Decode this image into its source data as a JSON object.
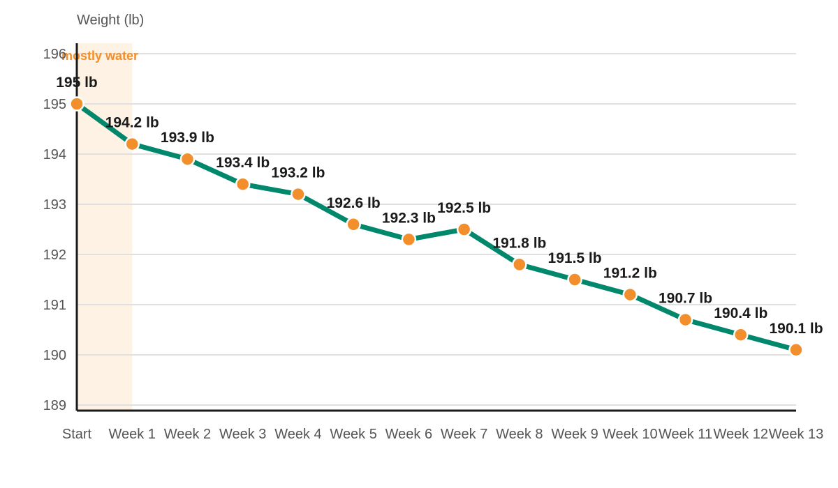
{
  "chart_data": {
    "type": "line",
    "ylabel": "Weight (lb)",
    "xlabel": "",
    "categories": [
      "Start",
      "Week 1",
      "Week 2",
      "Week 3",
      "Week 4",
      "Week 5",
      "Week 6",
      "Week 7",
      "Week 8",
      "Week 9",
      "Week 10",
      "Week 11",
      "Week 12",
      "Week 13"
    ],
    "series": [
      {
        "values": [
          195,
          194.2,
          193.9,
          193.4,
          193.2,
          192.6,
          192.3,
          192.5,
          191.8,
          191.5,
          191.2,
          190.7,
          190.4,
          190.1
        ],
        "labels": [
          "195 lb",
          "194.2 lb",
          "193.9 lb",
          "193.4 lb",
          "193.2 lb",
          "192.6 lb",
          "192.3 lb",
          "192.5 lb",
          "191.8 lb",
          "191.5 lb",
          "191.2 lb",
          "190.7 lb",
          "190.4 lb",
          "190.1 lb"
        ]
      }
    ],
    "ylim": [
      189,
      196
    ],
    "yticks": [
      "189",
      "190",
      "191",
      "192",
      "193",
      "194",
      "195",
      "196"
    ],
    "grid": true,
    "annotation": {
      "text": "mostly water",
      "from_category": "Start",
      "to_category": "Week 1"
    },
    "colors": {
      "line": "#00876c",
      "marker": "#f28e2b",
      "annotation": "#f28e2b",
      "band": "#fdf2e4",
      "grid": "#e0e0e0",
      "axis": "#1a1a1a"
    }
  }
}
